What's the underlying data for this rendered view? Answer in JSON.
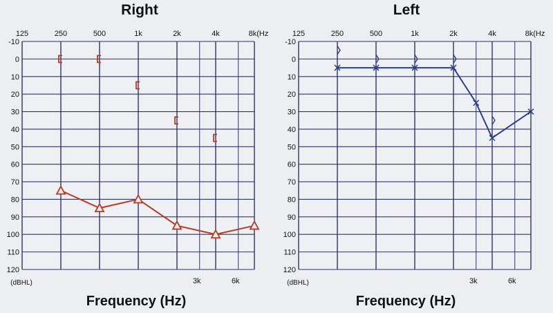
{
  "chart_data": [
    {
      "type": "line",
      "title": "Right",
      "xlabel": "Frequency (Hz)",
      "ylabel_unit": "(dBHL)",
      "x_top_ticks": [
        "125",
        "250",
        "500",
        "1k",
        "2k",
        "4k",
        "8k(Hz"
      ],
      "x_bottom_ticks": [
        "3k",
        "6k"
      ],
      "y_ticks": [
        "-10",
        "0",
        "10",
        "20",
        "30",
        "40",
        "50",
        "60",
        "70",
        "80",
        "90",
        "100",
        "110",
        "120"
      ],
      "ylim": [
        -10,
        120
      ],
      "y_inverted": true,
      "grid": true,
      "color": "#b83a24",
      "series": [
        {
          "marker": "bracket",
          "connected": false,
          "points": [
            {
              "x": "250",
              "y": 0
            },
            {
              "x": "500",
              "y": 0
            },
            {
              "x": "1k",
              "y": 15
            },
            {
              "x": "2k",
              "y": 35
            },
            {
              "x": "4k",
              "y": 45
            }
          ]
        },
        {
          "marker": "triangle",
          "connected": true,
          "points": [
            {
              "x": "250",
              "y": 75
            },
            {
              "x": "500",
              "y": 85
            },
            {
              "x": "1k",
              "y": 80
            },
            {
              "x": "2k",
              "y": 95
            },
            {
              "x": "4k",
              "y": 100
            },
            {
              "x": "8k",
              "y": 95
            }
          ]
        }
      ]
    },
    {
      "type": "line",
      "title": "Left",
      "xlabel": "Frequency (Hz)",
      "ylabel_unit": "(dBHL)",
      "x_top_ticks": [
        "125",
        "250",
        "500",
        "1k",
        "2k",
        "4k",
        "8k(Hz"
      ],
      "x_bottom_ticks": [
        "3k",
        "6k"
      ],
      "y_ticks": [
        "-10",
        "0",
        "10",
        "20",
        "30",
        "40",
        "50",
        "60",
        "70",
        "80",
        "90",
        "100",
        "110",
        "120"
      ],
      "ylim": [
        -10,
        120
      ],
      "y_inverted": true,
      "grid": true,
      "color": "#2c3f86",
      "series": [
        {
          "marker": "angle",
          "connected": false,
          "points": [
            {
              "x": "250",
              "y": -5
            },
            {
              "x": "500",
              "y": 0
            },
            {
              "x": "1k",
              "y": 0
            },
            {
              "x": "2k",
              "y": 0
            },
            {
              "x": "4k",
              "y": 35
            }
          ]
        },
        {
          "marker": "cross",
          "connected": true,
          "points": [
            {
              "x": "250",
              "y": 5
            },
            {
              "x": "500",
              "y": 5
            },
            {
              "x": "1k",
              "y": 5
            },
            {
              "x": "2k",
              "y": 5
            },
            {
              "x": "3k",
              "y": 25
            },
            {
              "x": "4k",
              "y": 45
            },
            {
              "x": "8k",
              "y": 30
            }
          ]
        }
      ]
    }
  ]
}
